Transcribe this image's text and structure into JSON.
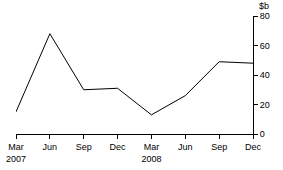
{
  "chart_data": {
    "type": "line",
    "ylabel": "$b",
    "categories": [
      "Mar 2007",
      "Jun",
      "Sep",
      "Dec",
      "Mar 2008",
      "Jun",
      "Sep",
      "Dec"
    ],
    "values": [
      15,
      68,
      30,
      31,
      13,
      26,
      49,
      48
    ],
    "color": "#000000",
    "ylim": [
      0,
      80
    ],
    "yticks": [
      0,
      20,
      40,
      60,
      80
    ],
    "grid": false
  }
}
